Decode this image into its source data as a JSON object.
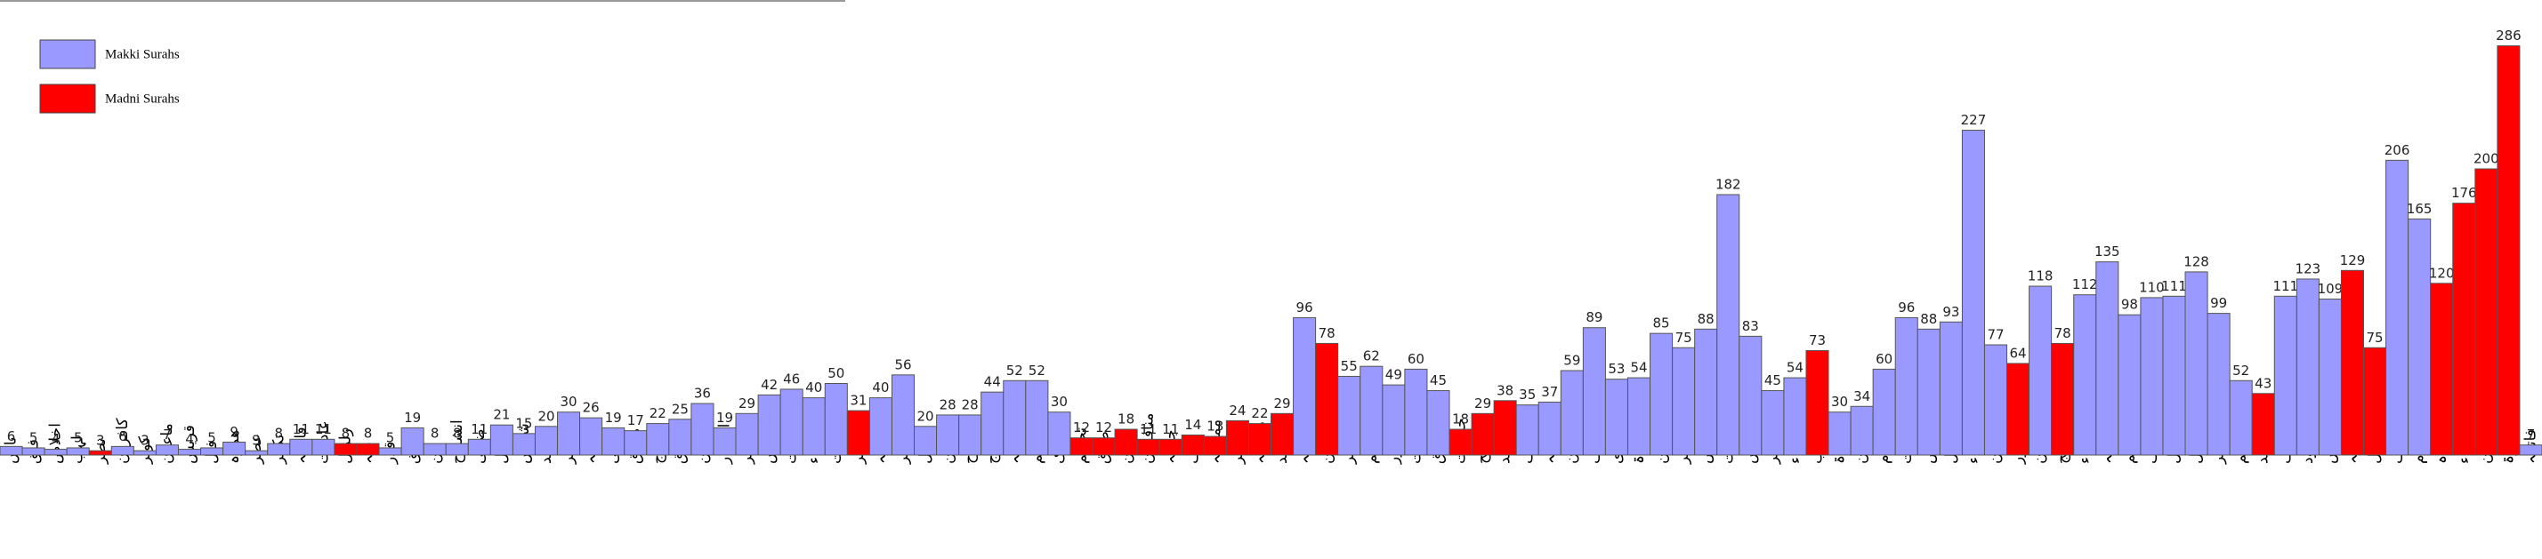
{
  "chart_data": {
    "type": "bar",
    "categories": [
      "ناس",
      "فلق",
      "اخلاص",
      "لہب",
      "نصر",
      "کافرون",
      "کوثر",
      "ماعون",
      "قریش",
      "فیل",
      "ھمزہ",
      "عصر",
      "تکاثر",
      "قارعہ",
      "عادیات",
      "زلزال",
      "بینہ",
      "قدر",
      "علق",
      "تین",
      "انشراح",
      "ضحی",
      "لیل",
      "شمس",
      "بلد",
      "فجر",
      "غاشیہ",
      "اعلی",
      "طارق",
      "بروج",
      "انشقاق",
      "مطففین",
      "انفطار",
      "تکویر",
      "عبس",
      "نازعات",
      "نباء",
      "مرسلات",
      "دھر",
      "قیامہ",
      "مدثر",
      "مزمل",
      "جن",
      "نوح",
      "معارج",
      "حاقہ",
      "قلم",
      "ملک",
      "تحریم",
      "طلاق",
      "تغابن",
      "منافقون",
      "جمعہ",
      "صف",
      "ممتحنہ",
      "حشر",
      "مجادلہ",
      "حدید",
      "واقعہ",
      "رحمن",
      "قمر",
      "نجم",
      "طور",
      "ذاریات",
      "ق",
      "حجرات",
      "فتح",
      "محمد",
      "احقاف",
      "جاثیہ",
      "دخان",
      "زخرف",
      "شوری",
      "حم سجدۃ",
      "مومن",
      "زمر",
      "ص",
      "صافات",
      "یس",
      "فاطر",
      "سباء",
      "احزاب",
      "سجدۃ",
      "لقمان",
      "روم",
      "عنکبوت",
      "قصص",
      "نمل",
      "شعراء",
      "فرقان",
      "نور",
      "مومنون",
      "حج",
      "انبیاء",
      "طہ",
      "مریم",
      "کہف",
      "بنی اسرائیل",
      "نحل",
      "حجر",
      "ابراہیم",
      "رعد",
      "یوسف",
      "ھود",
      "یونس",
      "توبہ",
      "انفال",
      "اعراف",
      "انعام",
      "مائدہ",
      "نساء",
      "آل عمران",
      "بقرۃ",
      "فاتحہ"
    ],
    "series": [
      {
        "name": "Makki Surahs",
        "color": "#9999ff",
        "values": [
          6,
          5,
          4,
          5,
          null,
          6,
          3,
          7,
          4,
          5,
          9,
          3,
          8,
          11,
          11,
          null,
          null,
          5,
          19,
          8,
          8,
          11,
          21,
          15,
          20,
          30,
          26,
          19,
          17,
          22,
          25,
          36,
          19,
          29,
          42,
          46,
          40,
          50,
          null,
          40,
          56,
          20,
          28,
          28,
          44,
          52,
          52,
          30,
          null,
          null,
          null,
          null,
          null,
          null,
          null,
          null,
          null,
          null,
          96,
          null,
          55,
          62,
          49,
          60,
          45,
          null,
          null,
          null,
          35,
          37,
          59,
          89,
          53,
          54,
          85,
          75,
          88,
          182,
          83,
          45,
          54,
          null,
          30,
          34,
          60,
          96,
          88,
          93,
          227,
          77,
          null,
          118,
          null,
          112,
          135,
          98,
          110,
          111,
          128,
          99,
          52,
          null,
          111,
          123,
          109,
          null,
          null,
          206,
          165,
          null,
          null,
          null,
          null,
          7
        ]
      },
      {
        "name": "Madni Surahs",
        "color": "#ff0000",
        "values": [
          null,
          null,
          null,
          null,
          3,
          null,
          null,
          null,
          null,
          null,
          null,
          null,
          null,
          null,
          null,
          8,
          8,
          null,
          null,
          null,
          null,
          null,
          null,
          null,
          null,
          null,
          null,
          null,
          null,
          null,
          null,
          null,
          null,
          null,
          null,
          null,
          null,
          null,
          31,
          null,
          null,
          null,
          null,
          null,
          null,
          null,
          null,
          null,
          12,
          12,
          18,
          11,
          11,
          14,
          13,
          24,
          22,
          29,
          null,
          78,
          null,
          null,
          null,
          null,
          null,
          18,
          29,
          38,
          null,
          null,
          null,
          null,
          null,
          null,
          null,
          null,
          null,
          null,
          null,
          null,
          null,
          73,
          null,
          null,
          null,
          null,
          null,
          null,
          null,
          null,
          64,
          null,
          78,
          null,
          null,
          null,
          null,
          null,
          null,
          null,
          null,
          43,
          null,
          null,
          null,
          129,
          75,
          null,
          null,
          120,
          176,
          200,
          286,
          null
        ]
      }
    ],
    "ylim": [
      0,
      300
    ]
  }
}
